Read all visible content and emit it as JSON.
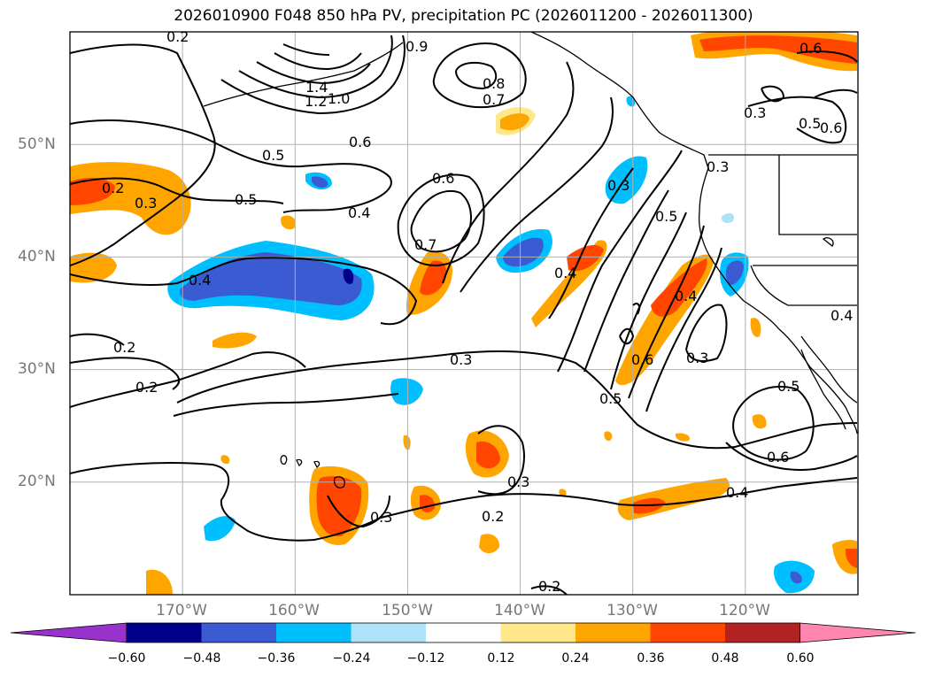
{
  "title": "2026010900 F048 850 hPa PV, precipitation PC (2026011200 - 2026011300)",
  "map": {
    "lon_range": [
      -180,
      -110
    ],
    "lat_range": [
      10,
      60
    ],
    "latitude_labels": [
      {
        "lat": 50,
        "text": "50°N"
      },
      {
        "lat": 40,
        "text": "40°N"
      },
      {
        "lat": 30,
        "text": "30°N"
      },
      {
        "lat": 20,
        "text": "20°N"
      }
    ],
    "longitude_labels": [
      {
        "lon": -170,
        "text": "170°W"
      },
      {
        "lon": -160,
        "text": "160°W"
      },
      {
        "lon": -150,
        "text": "150°W"
      },
      {
        "lon": -140,
        "text": "140°W"
      },
      {
        "lon": -130,
        "text": "130°W"
      },
      {
        "lon": -120,
        "text": "120°W"
      }
    ],
    "contour_labels": [
      "1.4",
      "1.2",
      "1.0",
      "0.9",
      "0.8",
      "0.7",
      "0.7",
      "0.6",
      "0.6",
      "0.6",
      "0.6",
      "0.5",
      "0.5",
      "0.5",
      "0.5",
      "0.5",
      "0.4",
      "0.4",
      "0.4",
      "0.4",
      "0.4",
      "0.4",
      "0.3",
      "0.3",
      "0.3",
      "0.3",
      "0.3",
      "0.3",
      "0.3",
      "0.3",
      "0.2",
      "0.2",
      "0.2",
      "0.2",
      "0.2",
      "0.2",
      "0.6",
      "0.5",
      "0.6"
    ]
  },
  "colorbar": {
    "ticks": [
      "−0.60",
      "−0.48",
      "−0.36",
      "−0.24",
      "−0.12",
      "0.12",
      "0.24",
      "0.36",
      "0.48",
      "0.60"
    ],
    "colors": [
      "#9932cc",
      "#00008b",
      "#3a5bd1",
      "#00bfff",
      "#ade2f7",
      "#ffffff",
      "#ffe88a",
      "#ffa500",
      "#ff4500",
      "#b22222",
      "#ff86b0"
    ]
  }
}
